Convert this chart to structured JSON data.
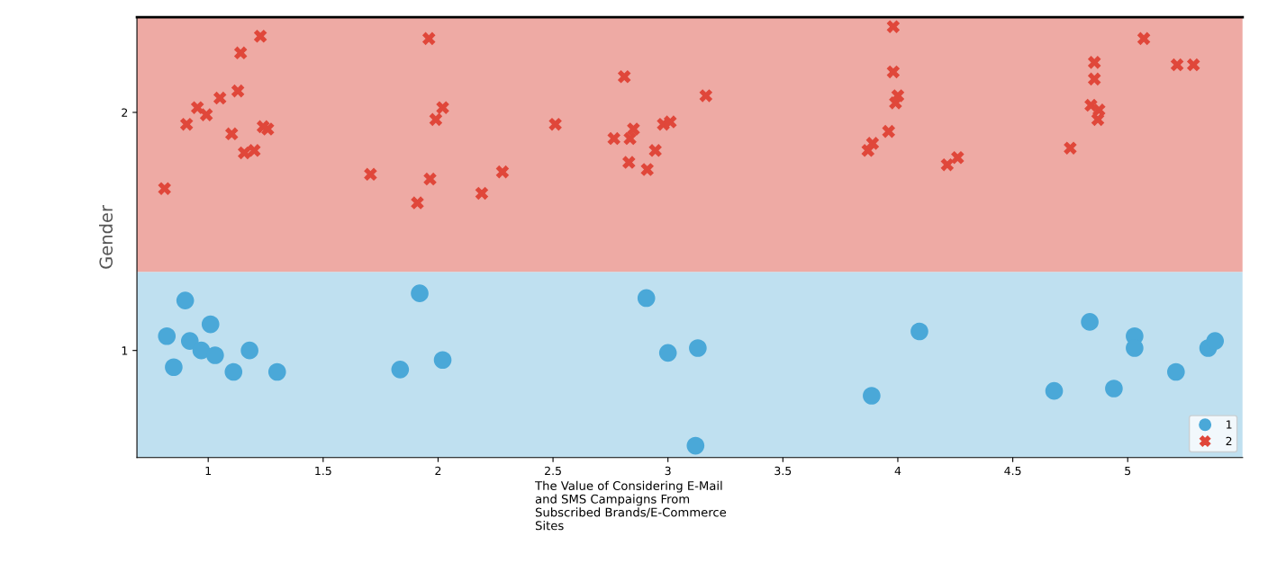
{
  "chart_data": {
    "type": "scatter",
    "xlabel": "The Value of Considering E-Mail\nand SMS Campaigns From\nSubscribed Brands/E-Commerce\nSites",
    "ylabel": "Gender",
    "xlim": [
      0.69,
      5.5
    ],
    "ylim": [
      0.55,
      2.4
    ],
    "xticks": [
      1,
      1.5,
      2,
      2.5,
      3,
      3.5,
      4,
      4.5,
      5
    ],
    "yticks": [
      1,
      2
    ],
    "grid": false,
    "legend": "bottom right",
    "bands": [
      {
        "axis": "y",
        "from": 0.55,
        "to": 1.33,
        "color": "#bfe0f0"
      },
      {
        "axis": "y",
        "from": 1.33,
        "to": 2.4,
        "color": "#eeaaa4"
      }
    ],
    "series": [
      {
        "name": "1",
        "color": "#4aa8d8",
        "marker": "circle",
        "x": [
          0.82,
          0.92,
          0.9,
          0.85,
          0.97,
          1.01,
          1.03,
          1.11,
          1.18,
          1.3,
          1.835,
          1.92,
          2.02,
          2.906,
          3.0,
          3.13,
          3.12,
          3.886,
          4.094,
          4.68,
          4.835,
          4.94,
          5.03,
          5.03,
          5.21,
          5.35,
          5.38
        ],
        "values": [
          1.06,
          1.04,
          1.21,
          0.93,
          1.0,
          1.11,
          0.98,
          0.91,
          1.0,
          0.91,
          0.92,
          1.24,
          0.96,
          1.22,
          0.99,
          1.01,
          0.6,
          0.81,
          1.08,
          0.83,
          1.12,
          0.84,
          1.06,
          1.01,
          0.91,
          1.01,
          1.04
        ]
      },
      {
        "name": "2",
        "color": "#e0473a",
        "marker": "cross",
        "x": [
          0.81,
          0.906,
          0.953,
          0.992,
          1.051,
          1.102,
          1.129,
          1.141,
          1.157,
          1.2,
          1.227,
          1.239,
          1.259,
          1.706,
          1.91,
          1.96,
          1.965,
          1.99,
          2.02,
          2.19,
          2.28,
          2.51,
          2.765,
          2.81,
          2.83,
          2.835,
          2.85,
          2.91,
          2.945,
          2.98,
          3.01,
          3.165,
          3.87,
          3.89,
          3.96,
          3.98,
          3.98,
          3.99,
          4.0,
          4.215,
          4.26,
          4.75,
          4.855,
          4.855,
          4.84,
          4.875,
          4.87,
          5.07,
          5.215,
          5.286
        ],
        "values": [
          1.68,
          1.95,
          2.02,
          1.99,
          2.06,
          1.91,
          2.09,
          2.25,
          1.83,
          1.84,
          2.32,
          1.94,
          1.93,
          1.74,
          1.62,
          2.31,
          1.72,
          1.97,
          2.02,
          1.66,
          1.75,
          1.95,
          1.89,
          2.15,
          1.79,
          1.89,
          1.93,
          1.76,
          1.84,
          1.95,
          1.96,
          2.07,
          1.84,
          1.87,
          1.92,
          2.36,
          2.17,
          2.04,
          2.07,
          1.78,
          1.81,
          1.85,
          2.21,
          2.14,
          2.03,
          2.01,
          1.97,
          2.31,
          2.2,
          2.2
        ]
      }
    ]
  }
}
